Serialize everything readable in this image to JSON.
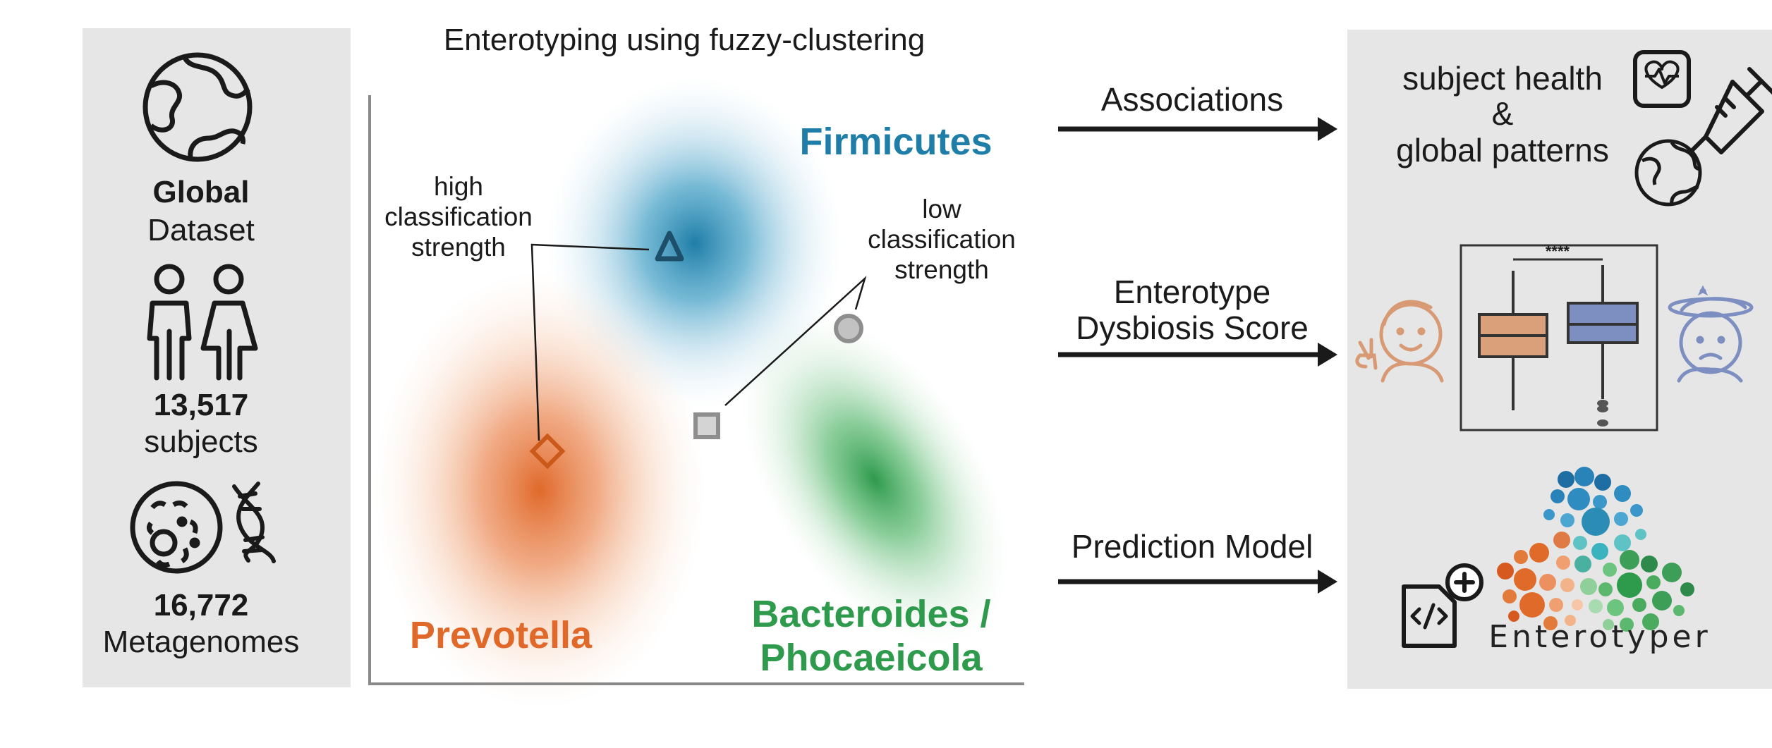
{
  "left_panel": {
    "global_bold": "Global",
    "dataset": "Dataset",
    "subjects_count": "13,517",
    "subjects_label": "subjects",
    "metagenomes_count": "16,772",
    "metagenomes_label": "Metagenomes"
  },
  "center": {
    "title": "Enterotyping using fuzzy-clustering",
    "clusters": {
      "firmicutes": "Firmicutes",
      "prevotella": "Prevotella",
      "bacteroides_line1": "Bacteroides /",
      "bacteroides_line2": "Phocaeicola"
    },
    "annotations": {
      "high_1": "high",
      "high_2": "classification",
      "high_3": "strength",
      "low_1": "low",
      "low_2": "classification",
      "low_3": "strength"
    }
  },
  "arrows": {
    "associations": "Associations",
    "dysbiosis_1": "Enterotype",
    "dysbiosis_2": "Dysbiosis Score",
    "prediction": "Prediction Model"
  },
  "right_panel": {
    "health_1": "subject health",
    "health_2": "&",
    "health_3": "global patterns",
    "significance": "****",
    "brand": "Enterotyper"
  },
  "colors": {
    "firmicutes": "#1f7ea8",
    "prevotella": "#e0692a",
    "bacteroides": "#2e9a4c",
    "panel_bg": "#e6e6e6",
    "box_orange": "#d9a07a",
    "box_blue": "#7d8fc0"
  },
  "icons": [
    "globe-icon",
    "people-icon",
    "microbe-icon",
    "dna-icon",
    "heart-monitor-icon",
    "syringe-icon",
    "happy-face-icon",
    "sad-face-icon",
    "code-file-icon"
  ]
}
